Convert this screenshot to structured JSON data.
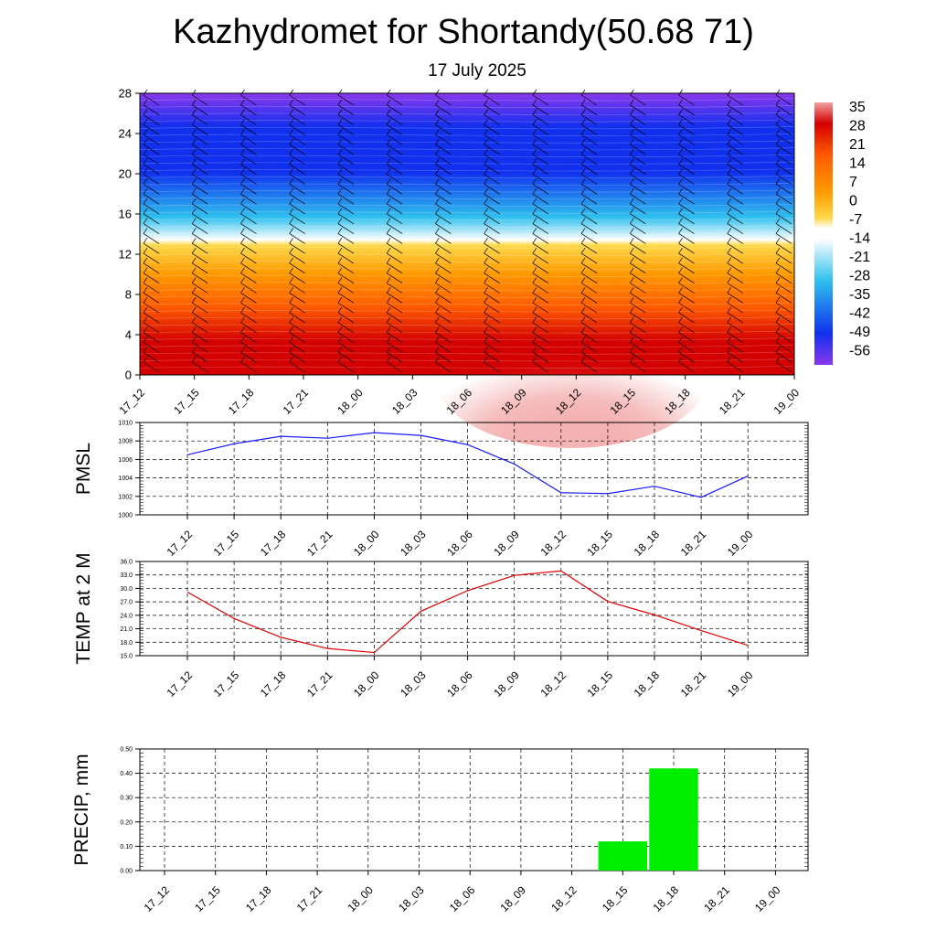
{
  "header": {
    "title": "Kazhydromet for Shortandy(50.68 71)",
    "subtitle": "17 July 2025"
  },
  "colorbar": {
    "labels": [
      "35",
      "28",
      "21",
      "14",
      "7",
      "0",
      "-7",
      "-14",
      "-21",
      "-28",
      "-35",
      "-42",
      "-49",
      "-56"
    ],
    "colors": {
      "top": "#f2a0a0",
      "hot": "#d40000",
      "warm": "#ff5a00",
      "orange": "#ff9a00",
      "yellow": "#ffd84a",
      "white": "#ffffff",
      "cyan": "#2fc0ee",
      "blue": "#1030ee",
      "violet": "#8a38ee"
    }
  },
  "chart_data": [
    {
      "id": "cross-section",
      "type": "heatmap",
      "y_ticks": [
        "0",
        "4",
        "8",
        "12",
        "16",
        "20",
        "24",
        "28"
      ],
      "ylim": [
        0,
        28
      ],
      "x_ticks": [
        "17_12",
        "17_15",
        "17_18",
        "17_21",
        "18_00",
        "18_03",
        "18_06",
        "18_09",
        "18_12",
        "18_15",
        "18_18",
        "18_21",
        "19_00"
      ],
      "color_range": [
        -56,
        35
      ]
    },
    {
      "id": "pmsl",
      "type": "line",
      "ylabel": "PMSL",
      "ylim": [
        1000,
        1010
      ],
      "y_ticks": [
        "1010",
        "1008",
        "1006",
        "1004",
        "1002",
        "1000"
      ],
      "categories": [
        "17_12",
        "17_15",
        "17_18",
        "17_21",
        "18_00",
        "18_03",
        "18_06",
        "18_09",
        "18_12",
        "18_15",
        "18_18",
        "18_21",
        "19_00"
      ],
      "values": [
        1006.5,
        1007.7,
        1008.5,
        1008.3,
        1008.9,
        1008.6,
        1007.6,
        1005.5,
        1002.4,
        1002.3,
        1003.1,
        1001.9,
        1004.2
      ],
      "color": "#1a1aff"
    },
    {
      "id": "temp",
      "type": "line",
      "ylabel": "TEMP at 2 M",
      "ylim": [
        15,
        36
      ],
      "y_ticks": [
        "36.0",
        "33.0",
        "30.0",
        "27.0",
        "24.0",
        "21.0",
        "18.0",
        "15.0"
      ],
      "categories": [
        "17_12",
        "17_15",
        "17_18",
        "17_21",
        "18_00",
        "18_03",
        "18_06",
        "18_09",
        "18_12",
        "18_15",
        "18_18",
        "18_21",
        "19_00"
      ],
      "values": [
        29.2,
        23.3,
        19.1,
        16.6,
        15.7,
        24.9,
        29.5,
        32.9,
        33.9,
        27.1,
        24.1,
        20.6,
        17.3
      ],
      "color": "#e00000"
    },
    {
      "id": "precip",
      "type": "bar",
      "ylabel": "PRECIP, mm",
      "ylim": [
        0,
        0.5
      ],
      "y_ticks": [
        "0.50",
        "0.40",
        "0.30",
        "0.20",
        "0.10",
        "0.00"
      ],
      "categories": [
        "17_12",
        "17_15",
        "17_18",
        "17_21",
        "18_00",
        "18_03",
        "18_06",
        "18_09",
        "18_12",
        "18_15",
        "18_18",
        "18_21",
        "19_00"
      ],
      "values": [
        0,
        0,
        0,
        0,
        0,
        0,
        0,
        0,
        0,
        0.12,
        0.42,
        0,
        0
      ],
      "color": "#00ee00"
    }
  ]
}
